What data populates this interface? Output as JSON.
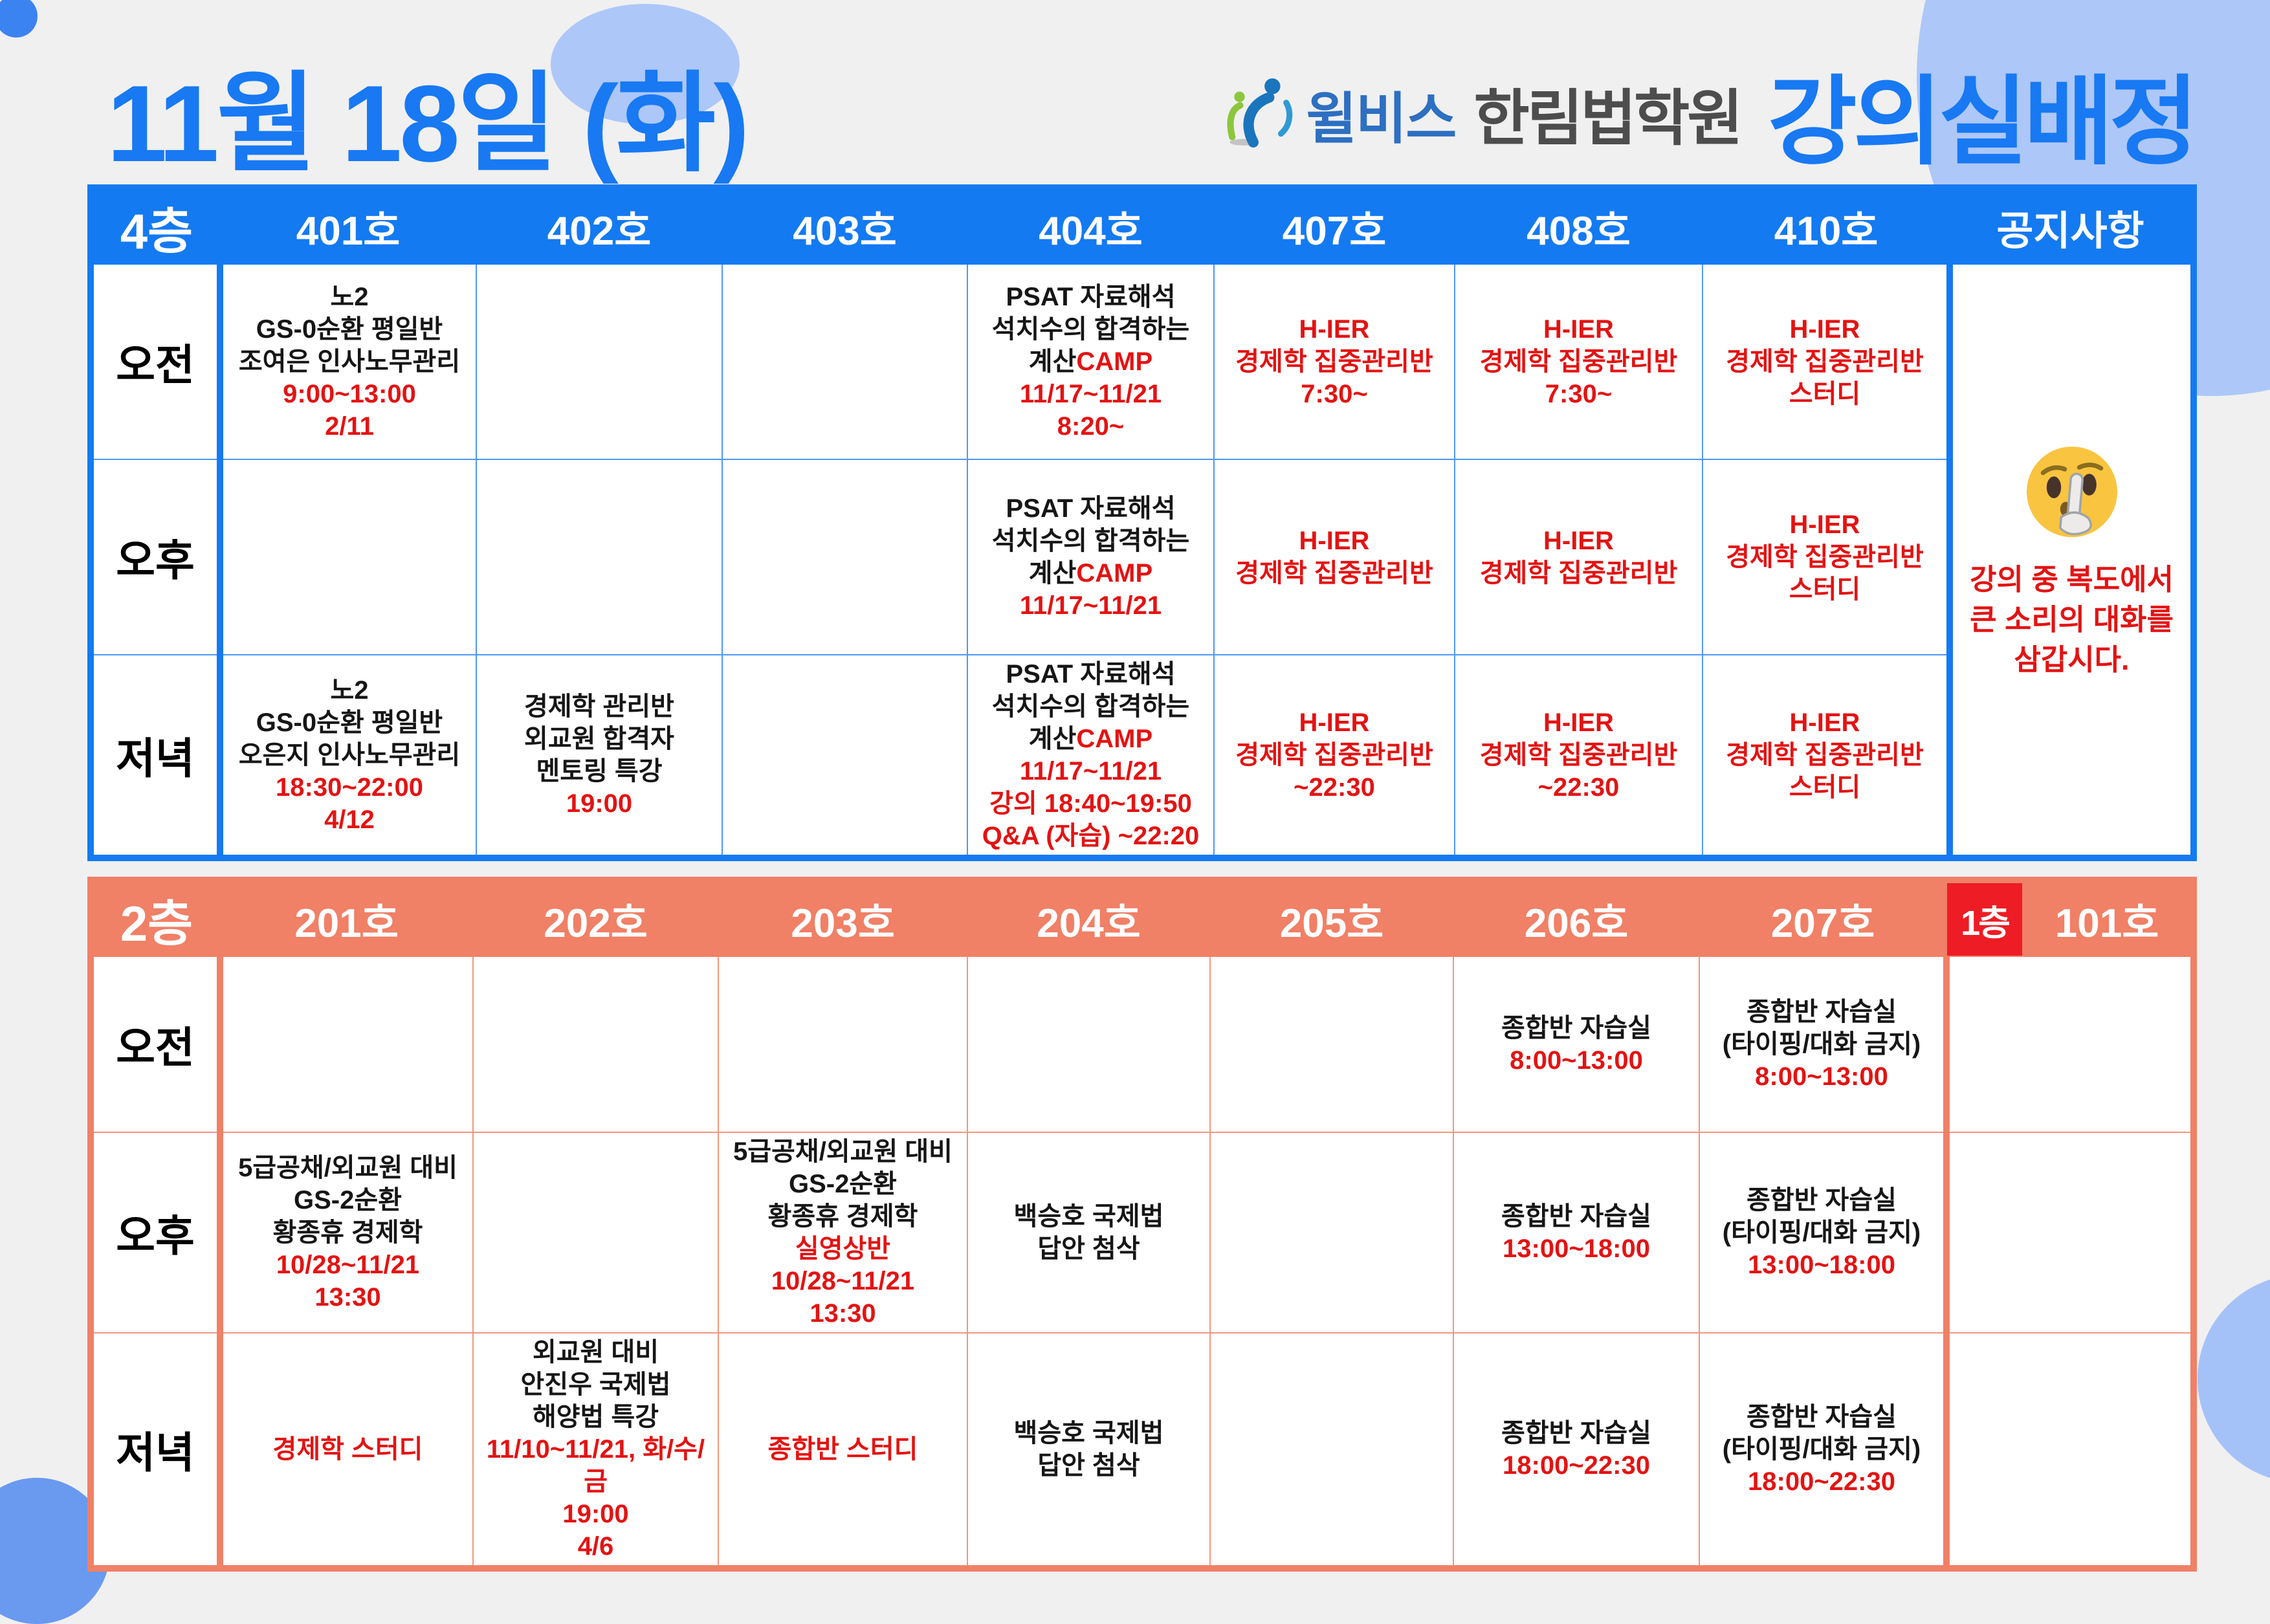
{
  "header": {
    "date_title": "11월 18일 (화)",
    "logo_icon": "people-logo-icon",
    "logo_brand": "윌비스",
    "logo_academy": "한림법학원",
    "page_heading": "강의실배정"
  },
  "colors": {
    "floor4_blue": "#147af2",
    "floor2_coral": "#f08066",
    "floor1_red": "#ee1c24",
    "text_red": "#e31313",
    "title_blue": "#1879f3",
    "logo_green": "#8cc63e",
    "logo_blue": "#1b75bc"
  },
  "floor4": {
    "floor_label": "4층",
    "room_headers": [
      "401호",
      "402호",
      "403호",
      "404호",
      "407호",
      "408호",
      "410호"
    ],
    "notice_header": "공지사항",
    "notice": {
      "icon": "shushing-face-emoji",
      "lines": [
        "강의 중 복도에서",
        "큰 소리의 대화를",
        "삼갑시다."
      ]
    },
    "rows": [
      {
        "label": "오전",
        "cells": [
          [
            [
              {
                "t": "노2"
              }
            ],
            [
              {
                "t": "GS-0순환 평일반"
              }
            ],
            [
              {
                "t": "조여은 인사노무관리"
              }
            ],
            [
              {
                "t": "9:00~13:00",
                "r": 1
              }
            ],
            [
              {
                "t": "2/11",
                "r": 1
              }
            ]
          ],
          [],
          [],
          [
            [
              {
                "t": "PSAT 자료해석"
              }
            ],
            [
              {
                "t": "석치수의 합격하는"
              }
            ],
            [
              {
                "t": "계산"
              },
              {
                "t": "CAMP",
                "r": 1
              }
            ],
            [
              {
                "t": "11/17~11/21",
                "r": 1
              }
            ],
            [
              {
                "t": "8:20~",
                "r": 1
              }
            ]
          ],
          [
            [
              {
                "t": "H-IER",
                "r": 1
              }
            ],
            [
              {
                "t": "경제학 집중관리반",
                "r": 1
              }
            ],
            [
              {
                "t": "7:30~",
                "r": 1
              }
            ]
          ],
          [
            [
              {
                "t": "H-IER",
                "r": 1
              }
            ],
            [
              {
                "t": "경제학 집중관리반",
                "r": 1
              }
            ],
            [
              {
                "t": "7:30~",
                "r": 1
              }
            ]
          ],
          [
            [
              {
                "t": "H-IER",
                "r": 1
              }
            ],
            [
              {
                "t": "경제학 집중관리반",
                "r": 1
              }
            ],
            [
              {
                "t": "스터디",
                "r": 1
              }
            ]
          ]
        ]
      },
      {
        "label": "오후",
        "cells": [
          [],
          [],
          [],
          [
            [
              {
                "t": "PSAT 자료해석"
              }
            ],
            [
              {
                "t": "석치수의 합격하는"
              }
            ],
            [
              {
                "t": "계산"
              },
              {
                "t": "CAMP",
                "r": 1
              }
            ],
            [
              {
                "t": "11/17~11/21",
                "r": 1
              }
            ]
          ],
          [
            [
              {
                "t": "H-IER",
                "r": 1
              }
            ],
            [
              {
                "t": "경제학 집중관리반",
                "r": 1
              }
            ]
          ],
          [
            [
              {
                "t": "H-IER",
                "r": 1
              }
            ],
            [
              {
                "t": "경제학 집중관리반",
                "r": 1
              }
            ]
          ],
          [
            [
              {
                "t": "H-IER",
                "r": 1
              }
            ],
            [
              {
                "t": "경제학 집중관리반",
                "r": 1
              }
            ],
            [
              {
                "t": "스터디",
                "r": 1
              }
            ]
          ]
        ]
      },
      {
        "label": "저녁",
        "cells": [
          [
            [
              {
                "t": "노2"
              }
            ],
            [
              {
                "t": "GS-0순환 평일반"
              }
            ],
            [
              {
                "t": "오은지 인사노무관리"
              }
            ],
            [
              {
                "t": "18:30~22:00",
                "r": 1
              }
            ],
            [
              {
                "t": "4/12",
                "r": 1
              }
            ]
          ],
          [
            [
              {
                "t": "경제학 관리반"
              }
            ],
            [
              {
                "t": "외교원 합격자"
              }
            ],
            [
              {
                "t": "멘토링 특강"
              }
            ],
            [
              {
                "t": "19:00",
                "r": 1
              }
            ]
          ],
          [],
          [
            [
              {
                "t": "PSAT 자료해석"
              }
            ],
            [
              {
                "t": "석치수의 합격하는"
              }
            ],
            [
              {
                "t": "계산"
              },
              {
                "t": "CAMP",
                "r": 1
              }
            ],
            [
              {
                "t": "11/17~11/21",
                "r": 1
              }
            ],
            [
              {
                "t": "강의 18:40~19:50",
                "r": 1
              }
            ],
            [
              {
                "t": "Q&A (자습) ~22:20",
                "r": 1
              }
            ]
          ],
          [
            [
              {
                "t": "H-IER",
                "r": 1
              }
            ],
            [
              {
                "t": "경제학 집중관리반",
                "r": 1
              }
            ],
            [
              {
                "t": "~22:30",
                "r": 1
              }
            ]
          ],
          [
            [
              {
                "t": "H-IER",
                "r": 1
              }
            ],
            [
              {
                "t": "경제학 집중관리반",
                "r": 1
              }
            ],
            [
              {
                "t": "~22:30",
                "r": 1
              }
            ]
          ],
          [
            [
              {
                "t": "H-IER",
                "r": 1
              }
            ],
            [
              {
                "t": "경제학 집중관리반",
                "r": 1
              }
            ],
            [
              {
                "t": "스터디",
                "r": 1
              }
            ]
          ]
        ]
      }
    ]
  },
  "floor2": {
    "floor_label": "2층",
    "room_headers": [
      "201호",
      "202호",
      "203호",
      "204호",
      "205호",
      "206호",
      "207호"
    ],
    "floor1_label": "1층",
    "floor1_room_header": "101호",
    "rows": [
      {
        "label": "오전",
        "cells": [
          [],
          [],
          [],
          [],
          [],
          [
            [
              {
                "t": "종합반 자습실"
              }
            ],
            [
              {
                "t": "8:00~13:00",
                "r": 1
              }
            ]
          ],
          [
            [
              {
                "t": "종합반 자습실"
              }
            ],
            [
              {
                "t": "(타이핑/대화 금지)"
              }
            ],
            [
              {
                "t": "8:00~13:00",
                "r": 1
              }
            ]
          ],
          []
        ]
      },
      {
        "label": "오후",
        "cells": [
          [
            [
              {
                "t": "5급공채/외교원 대비"
              }
            ],
            [
              {
                "t": "GS-2순환"
              }
            ],
            [
              {
                "t": "황종휴 경제학"
              }
            ],
            [
              {
                "t": "10/28~11/21",
                "r": 1
              }
            ],
            [
              {
                "t": "13:30",
                "r": 1
              }
            ]
          ],
          [],
          [
            [
              {
                "t": "5급공채/외교원 대비"
              }
            ],
            [
              {
                "t": "GS-2순환"
              }
            ],
            [
              {
                "t": "황종휴 경제학"
              }
            ],
            [
              {
                "t": "실영상반",
                "r": 1
              }
            ],
            [
              {
                "t": "10/28~11/21",
                "r": 1
              }
            ],
            [
              {
                "t": "13:30",
                "r": 1
              }
            ]
          ],
          [
            [
              {
                "t": "백승호 국제법"
              }
            ],
            [
              {
                "t": "답안 첨삭"
              }
            ]
          ],
          [],
          [
            [
              {
                "t": "종합반 자습실"
              }
            ],
            [
              {
                "t": "13:00~18:00",
                "r": 1
              }
            ]
          ],
          [
            [
              {
                "t": "종합반 자습실"
              }
            ],
            [
              {
                "t": "(타이핑/대화 금지)"
              }
            ],
            [
              {
                "t": "13:00~18:00",
                "r": 1
              }
            ]
          ],
          []
        ]
      },
      {
        "label": "저녁",
        "cells": [
          [
            [
              {
                "t": "경제학 스터디",
                "r": 1
              }
            ]
          ],
          [
            [
              {
                "t": "외교원 대비"
              }
            ],
            [
              {
                "t": "안진우 국제법"
              }
            ],
            [
              {
                "t": "해양법 특강"
              }
            ],
            [
              {
                "t": "11/10~11/21, 화/수/금",
                "r": 1
              }
            ],
            [
              {
                "t": "19:00",
                "r": 1
              }
            ],
            [
              {
                "t": "4/6",
                "r": 1
              }
            ]
          ],
          [
            [
              {
                "t": "종합반 스터디",
                "r": 1
              }
            ]
          ],
          [
            [
              {
                "t": "백승호 국제법"
              }
            ],
            [
              {
                "t": "답안 첨삭"
              }
            ]
          ],
          [],
          [
            [
              {
                "t": "종합반 자습실"
              }
            ],
            [
              {
                "t": "18:00~22:30",
                "r": 1
              }
            ]
          ],
          [
            [
              {
                "t": "종합반 자습실"
              }
            ],
            [
              {
                "t": "(타이핑/대화 금지)"
              }
            ],
            [
              {
                "t": "18:00~22:30",
                "r": 1
              }
            ]
          ],
          []
        ]
      }
    ]
  }
}
